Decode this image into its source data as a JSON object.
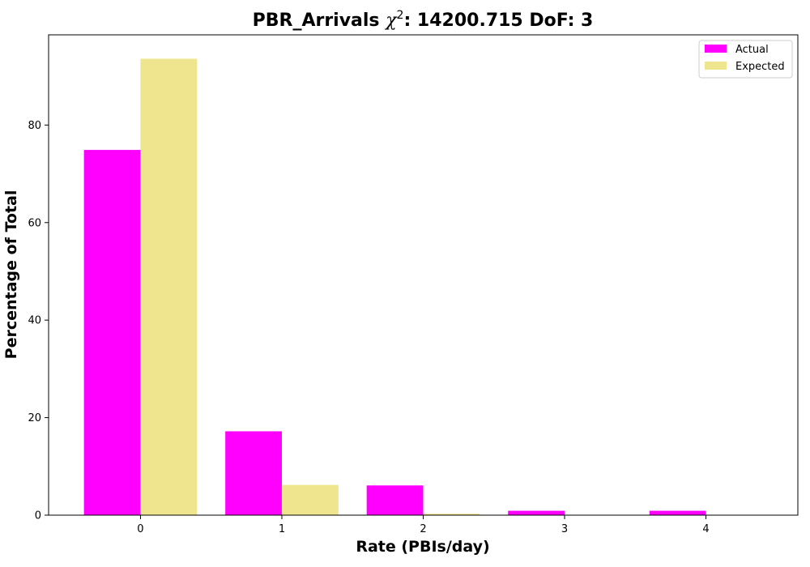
{
  "chart_data": {
    "type": "bar",
    "title_prefix": "PBR_Arrivals ",
    "title_chi": "χ",
    "title_sup": "2",
    "title_suffix": ": 14200.715 DoF: 3",
    "xlabel": "Rate (PBIs/day)",
    "ylabel": "Percentage of Total",
    "categories": [
      "0",
      "1",
      "2",
      "3",
      "4"
    ],
    "series": [
      {
        "name": "Actual",
        "color": "#ff00ff",
        "values": [
          74.9,
          17.2,
          6.1,
          0.9,
          0.9
        ]
      },
      {
        "name": "Expected",
        "color": "#eee58e",
        "values": [
          93.6,
          6.2,
          0.3,
          0.0,
          0.0
        ]
      }
    ],
    "ylim": [
      0,
      98.5
    ],
    "xlim": [
      -0.65,
      4.65
    ],
    "yticks": [
      0,
      20,
      40,
      60,
      80
    ],
    "grid": false,
    "legend_position": "top-right"
  }
}
